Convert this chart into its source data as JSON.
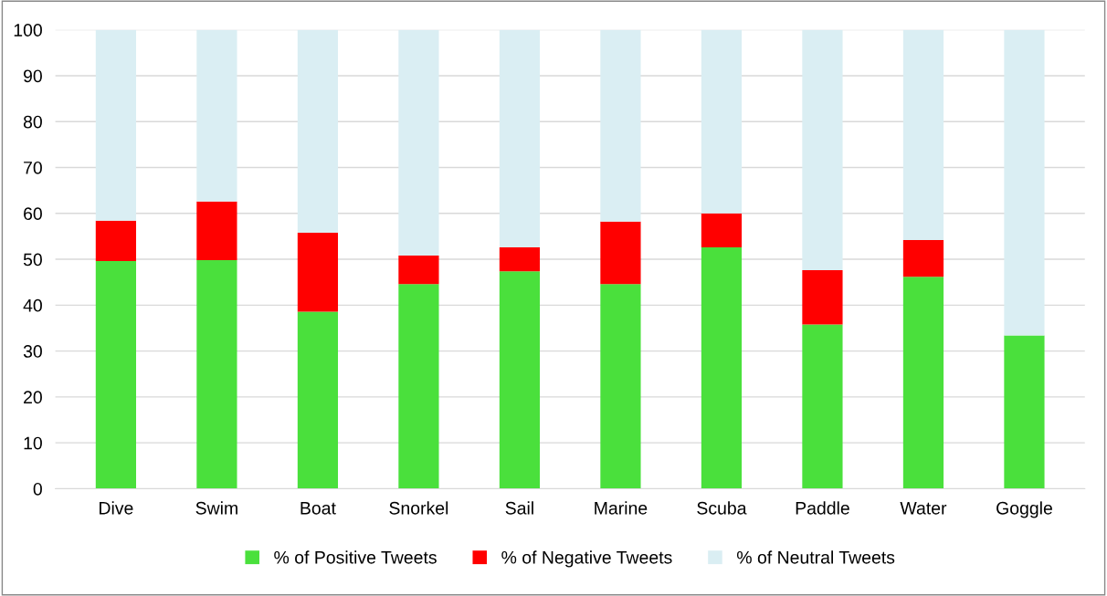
{
  "chart_data": {
    "type": "bar",
    "stacked": true,
    "categories": [
      "Dive",
      "Swim",
      "Boat",
      "Snorkel",
      "Sail",
      "Marine",
      "Scuba",
      "Paddle",
      "Water",
      "Goggle"
    ],
    "series": [
      {
        "name": "% of Positive Tweets",
        "color": "#4ae03c",
        "values": [
          49.6,
          49.8,
          38.6,
          44.6,
          47.4,
          44.6,
          52.6,
          35.8,
          46.2,
          33.4
        ]
      },
      {
        "name": "% of Negative Tweets",
        "color": "#ff0000",
        "values": [
          8.8,
          12.8,
          17.2,
          6.2,
          5.2,
          13.6,
          7.4,
          11.8,
          8.0,
          0
        ]
      },
      {
        "name": "% of Neutral Tweets",
        "color": "#daeef3",
        "values": [
          41.6,
          37.4,
          44.2,
          49.2,
          47.4,
          41.8,
          40.0,
          52.4,
          45.8,
          66.6
        ]
      }
    ],
    "ylim": [
      0,
      100
    ],
    "yticks": [
      0,
      10,
      20,
      30,
      40,
      50,
      60,
      70,
      80,
      90,
      100
    ],
    "grid": "y",
    "legend": "bottom"
  }
}
